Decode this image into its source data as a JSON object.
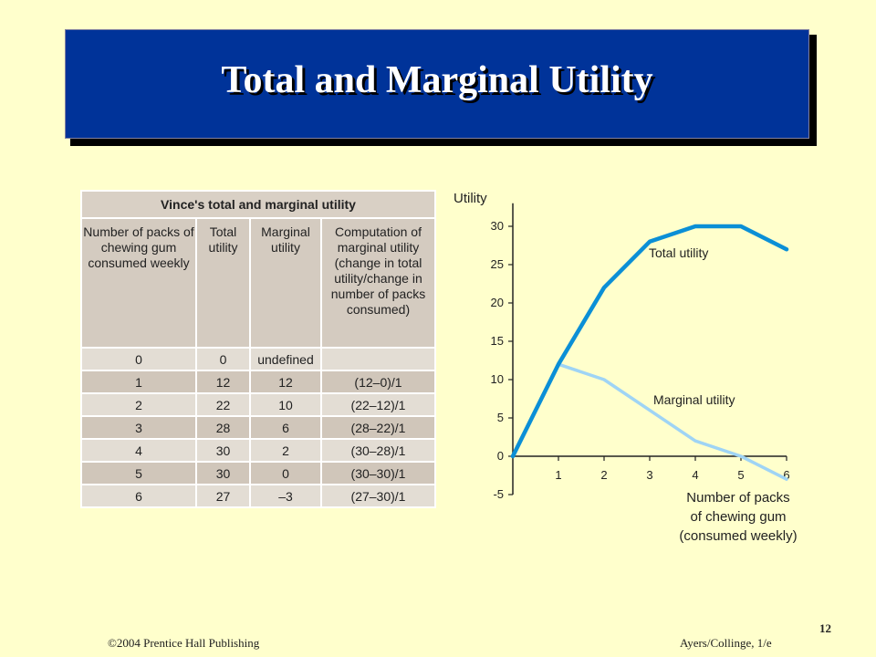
{
  "title": "Total and Marginal Utility",
  "table": {
    "caption": "Vince's total and marginal utility",
    "headers": [
      "Number of packs of chewing gum consumed weekly",
      "Total utility",
      "Marginal utility",
      "Computation of marginal utility (change in total utility/change in number of packs consumed)"
    ],
    "rows": [
      [
        "0",
        "0",
        "undefined",
        ""
      ],
      [
        "1",
        "12",
        "12",
        "(12–0)/1"
      ],
      [
        "2",
        "22",
        "10",
        "(22–12)/1"
      ],
      [
        "3",
        "28",
        "6",
        "(28–22)/1"
      ],
      [
        "4",
        "30",
        "2",
        "(30–28)/1"
      ],
      [
        "5",
        "30",
        "0",
        "(30–30)/1"
      ],
      [
        "6",
        "27",
        "–3",
        "(27–30)/1"
      ]
    ]
  },
  "chart_data": {
    "type": "line",
    "ylabel": "Utility",
    "xlabel_lines": [
      "Number of packs",
      "of chewing gum",
      "(consumed weekly)"
    ],
    "ylim": [
      -5,
      33
    ],
    "xlim": [
      0,
      6
    ],
    "y_ticks": [
      -5,
      0,
      5,
      10,
      15,
      20,
      25,
      30
    ],
    "x_ticks": [
      1,
      2,
      3,
      4,
      5,
      6
    ],
    "grid": false,
    "series": [
      {
        "name": "Total utility",
        "color": "#0B8FD6",
        "x": [
          0,
          1,
          2,
          3,
          4,
          5,
          6
        ],
        "y": [
          0,
          12,
          22,
          28,
          30,
          30,
          27
        ]
      },
      {
        "name": "Marginal utility",
        "color": "#9FD4F5",
        "x": [
          1,
          2,
          3,
          4,
          5,
          6
        ],
        "y": [
          12,
          10,
          6,
          2,
          0,
          -3
        ]
      }
    ]
  },
  "footer": {
    "left": "©2004 Prentice Hall Publishing",
    "right": "Ayers/Collinge, 1/e",
    "page": "12"
  }
}
